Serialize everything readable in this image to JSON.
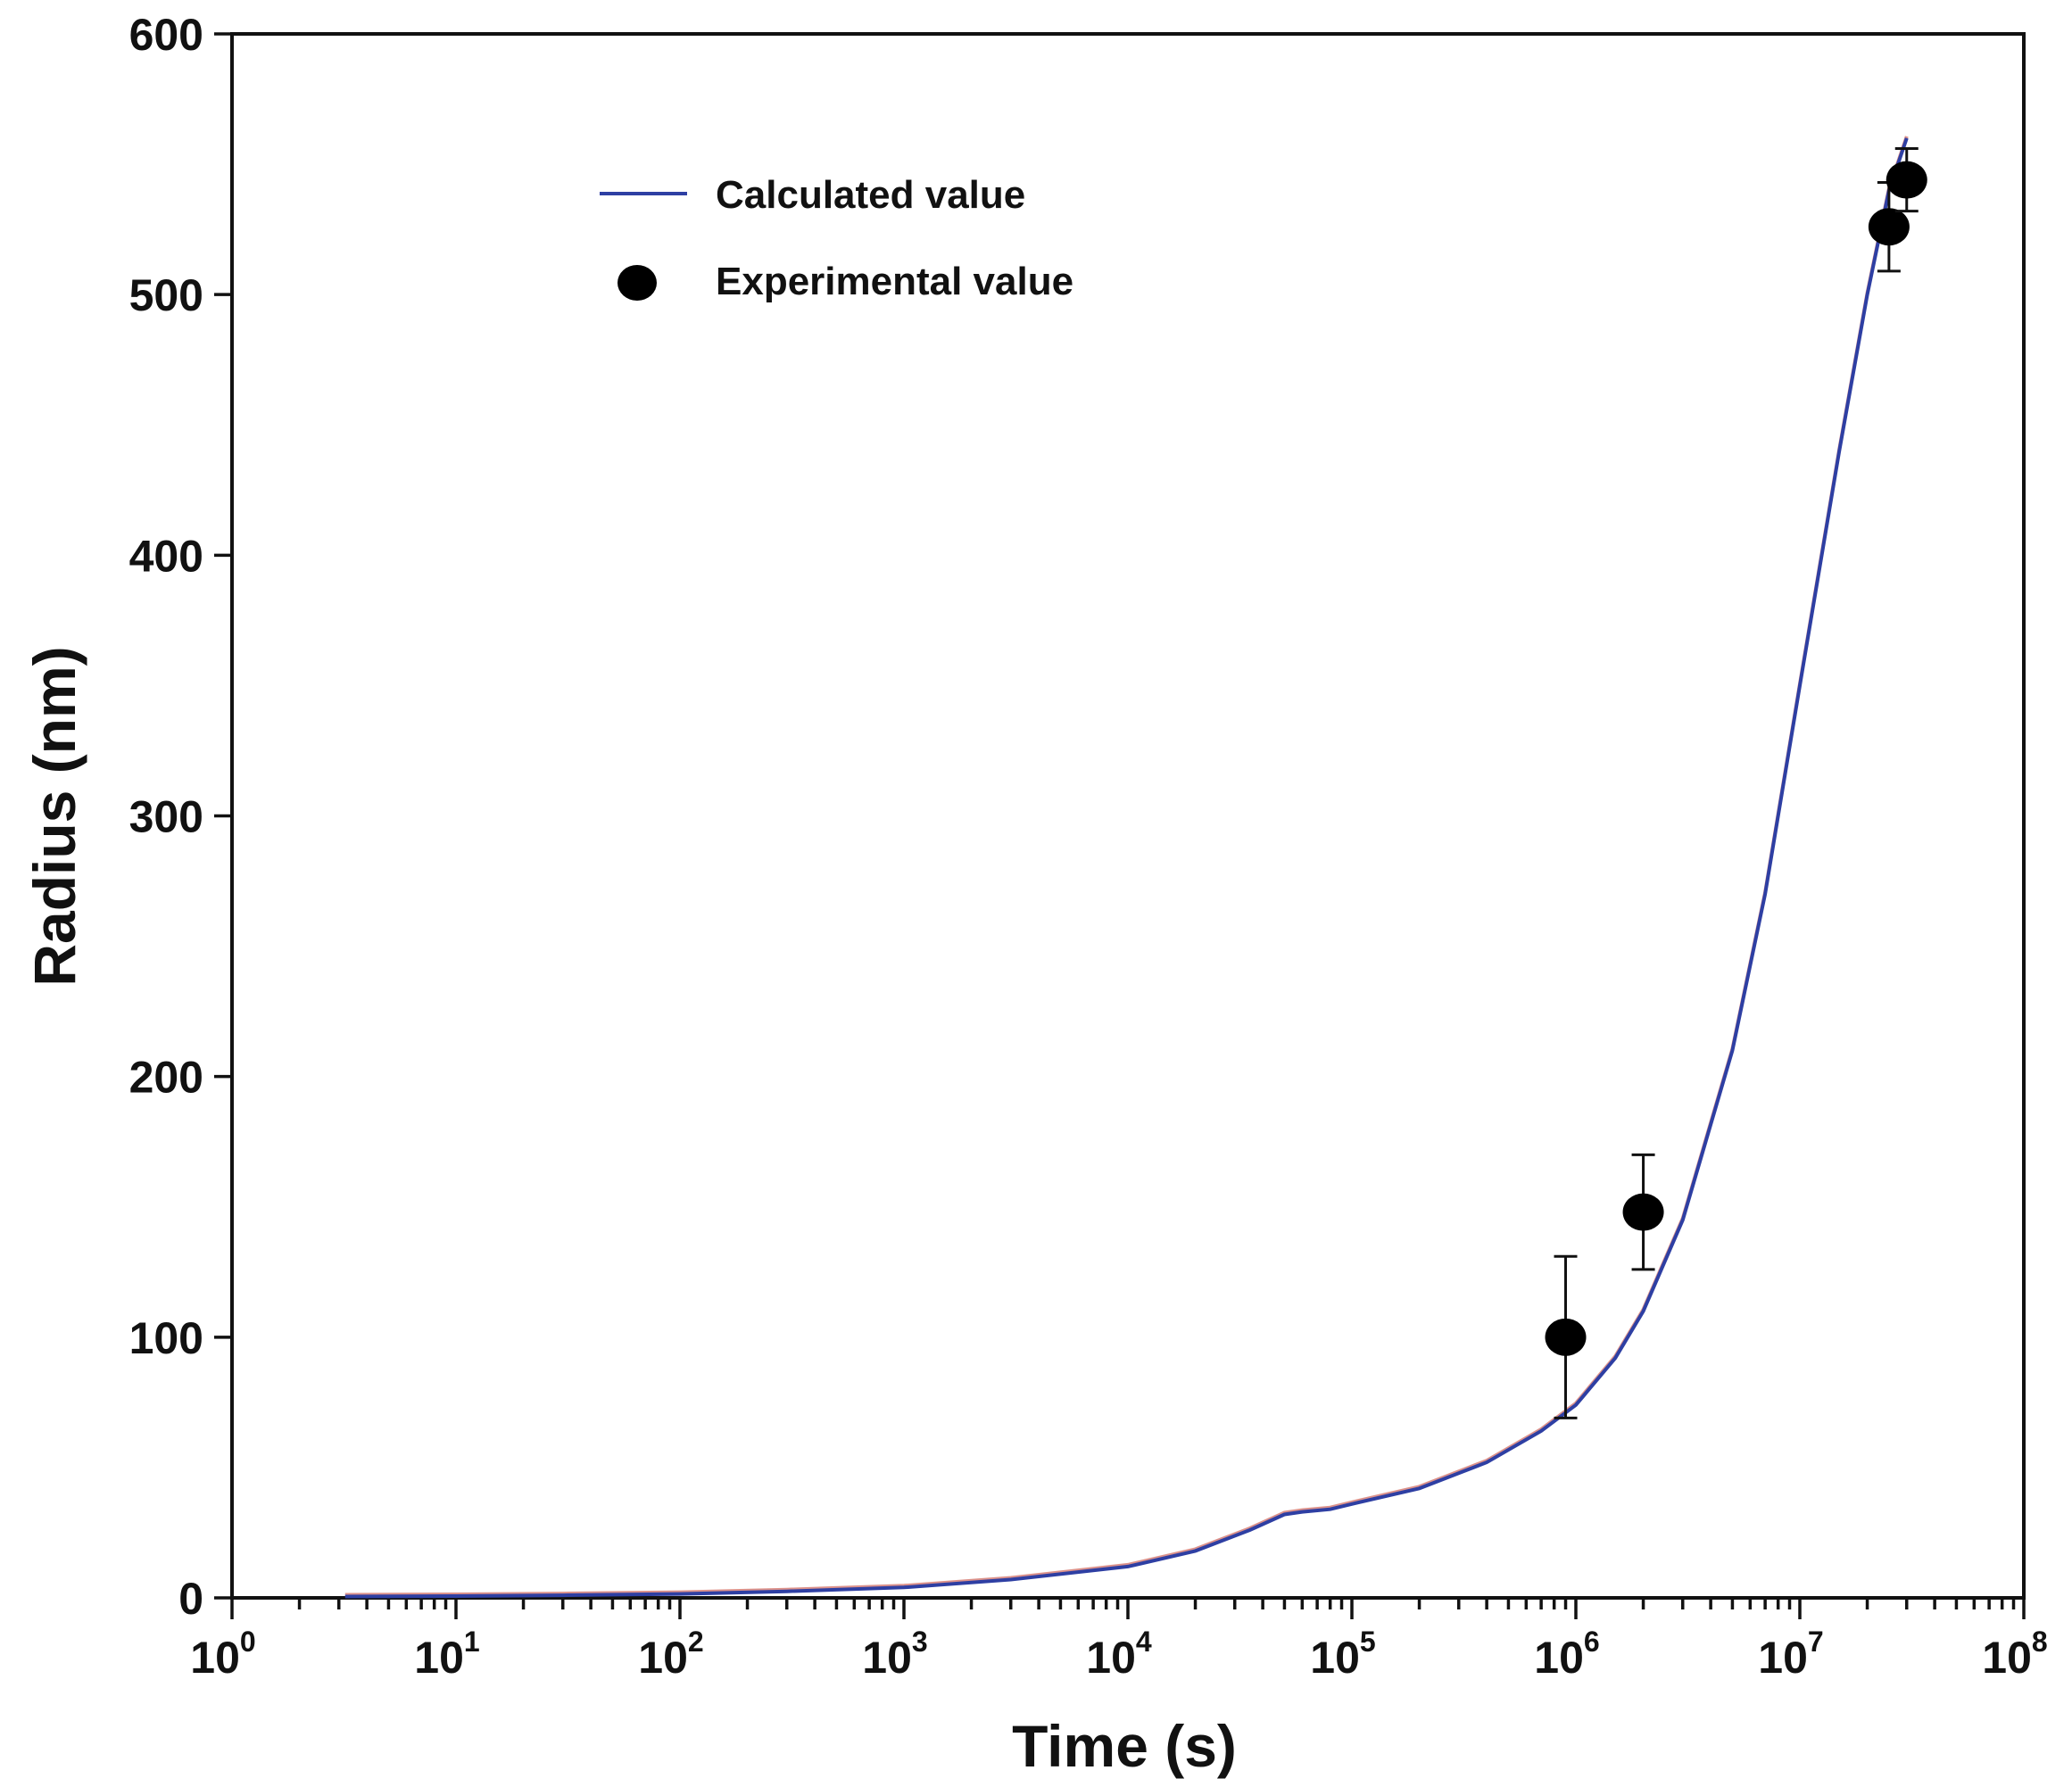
{
  "chart_data": {
    "type": "line",
    "title": "",
    "xlabel": "Time (s)",
    "ylabel": "Radius (nm)",
    "xscale": "log",
    "xlim": [
      1,
      100000000
    ],
    "ylim": [
      0,
      600
    ],
    "yticks": [
      "0",
      "100",
      "200",
      "300",
      "400",
      "500",
      "600"
    ],
    "xticks": [
      {
        "base": "10",
        "exp": "0"
      },
      {
        "base": "10",
        "exp": "1"
      },
      {
        "base": "10",
        "exp": "2"
      },
      {
        "base": "10",
        "exp": "3"
      },
      {
        "base": "10",
        "exp": "4"
      },
      {
        "base": "10",
        "exp": "5"
      },
      {
        "base": "10",
        "exp": "6"
      },
      {
        "base": "10",
        "exp": "7"
      },
      {
        "base": "10",
        "exp": "8"
      }
    ],
    "legend_position": "top-left",
    "series": [
      {
        "name": "Calculated value",
        "kind": "line",
        "color": "#2e3fa3",
        "x": [
          3.2,
          10,
          30,
          100,
          300,
          1000,
          3000,
          10000,
          20000,
          35000,
          50000,
          60000,
          80000,
          100000,
          200000,
          400000,
          700000,
          1000000,
          1500000,
          2000000,
          3000000,
          5000000,
          7000000,
          10000000,
          15000000,
          20000000,
          25000000,
          30000000
        ],
        "y": [
          0.5,
          0.7,
          1,
          1.5,
          2.5,
          4,
          7,
          12,
          18,
          26,
          32,
          33,
          34,
          36,
          42,
          52,
          64,
          74,
          92,
          110,
          145,
          210,
          270,
          350,
          440,
          500,
          540,
          560
        ]
      },
      {
        "name": "Experimental value",
        "kind": "scatter",
        "color": "#000000",
        "x": [
          900000,
          2000000,
          25000000,
          30000000
        ],
        "y": [
          100,
          148,
          526,
          544
        ],
        "err": [
          31,
          22,
          17,
          12
        ]
      }
    ]
  }
}
